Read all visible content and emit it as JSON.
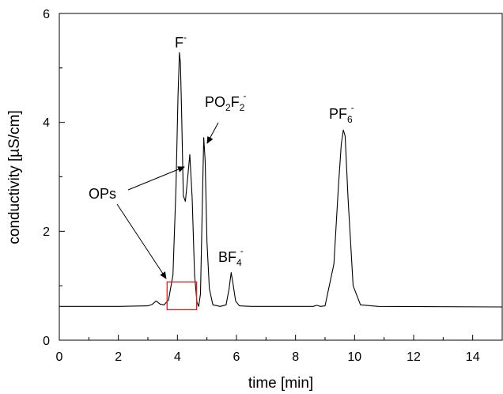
{
  "chart_data": {
    "type": "line",
    "title": "",
    "xlabel": "time [min]",
    "ylabel": "conductivity [µS/cm]",
    "xlim": [
      0,
      15
    ],
    "ylim": [
      0,
      6
    ],
    "x_ticks": [
      "0",
      "2",
      "4",
      "6",
      "8",
      "10",
      "12",
      "14"
    ],
    "y_ticks": [
      "0",
      "2",
      "4",
      "6"
    ],
    "grid": false,
    "legend": "none",
    "series": [
      {
        "x": [
          0,
          2.0,
          3.0,
          3.15,
          3.28,
          3.42,
          3.55,
          3.7,
          3.85,
          3.95,
          4.02,
          4.07,
          4.1,
          4.14,
          4.2,
          4.27,
          4.35,
          4.42,
          4.5,
          4.58,
          4.66,
          4.72,
          4.78,
          4.84,
          4.89,
          4.94,
          5.0,
          5.08,
          5.2,
          5.45,
          5.65,
          5.75,
          5.82,
          5.88,
          5.97,
          6.1,
          6.5,
          8.6,
          8.72,
          8.85,
          9.0,
          9.3,
          9.45,
          9.55,
          9.62,
          9.68,
          9.78,
          9.95,
          10.2,
          10.8,
          15.0
        ],
        "y": [
          0.62,
          0.62,
          0.63,
          0.66,
          0.72,
          0.66,
          0.65,
          0.74,
          1.2,
          2.8,
          4.5,
          5.28,
          5.1,
          4.2,
          2.65,
          2.55,
          3.0,
          3.41,
          2.6,
          1.2,
          0.7,
          0.62,
          0.85,
          2.4,
          3.72,
          3.3,
          1.8,
          0.95,
          0.65,
          0.62,
          0.65,
          0.95,
          1.24,
          1.05,
          0.72,
          0.63,
          0.62,
          0.62,
          0.64,
          0.62,
          0.63,
          1.4,
          2.8,
          3.6,
          3.86,
          3.75,
          2.6,
          1.0,
          0.65,
          0.62,
          0.61
        ]
      }
    ],
    "annotations": {
      "f_peak": "F",
      "f_charge": "-",
      "po2f2_main": "PO",
      "po2f2_sub1": "2",
      "po2f2_mid": "F",
      "po2f2_sub2": "2",
      "po2f2_charge": "-",
      "bf4_main": "BF",
      "bf4_sub": "4",
      "bf4_charge": "-",
      "pf6_main": "PF",
      "pf6_sub": "6",
      "pf6_charge": "-",
      "ops": "OPs"
    },
    "highlight_box": {
      "x": [
        3.65,
        4.65
      ],
      "y": [
        0.56,
        1.07
      ],
      "color": "#e0201c"
    },
    "line_color": "#000000"
  }
}
